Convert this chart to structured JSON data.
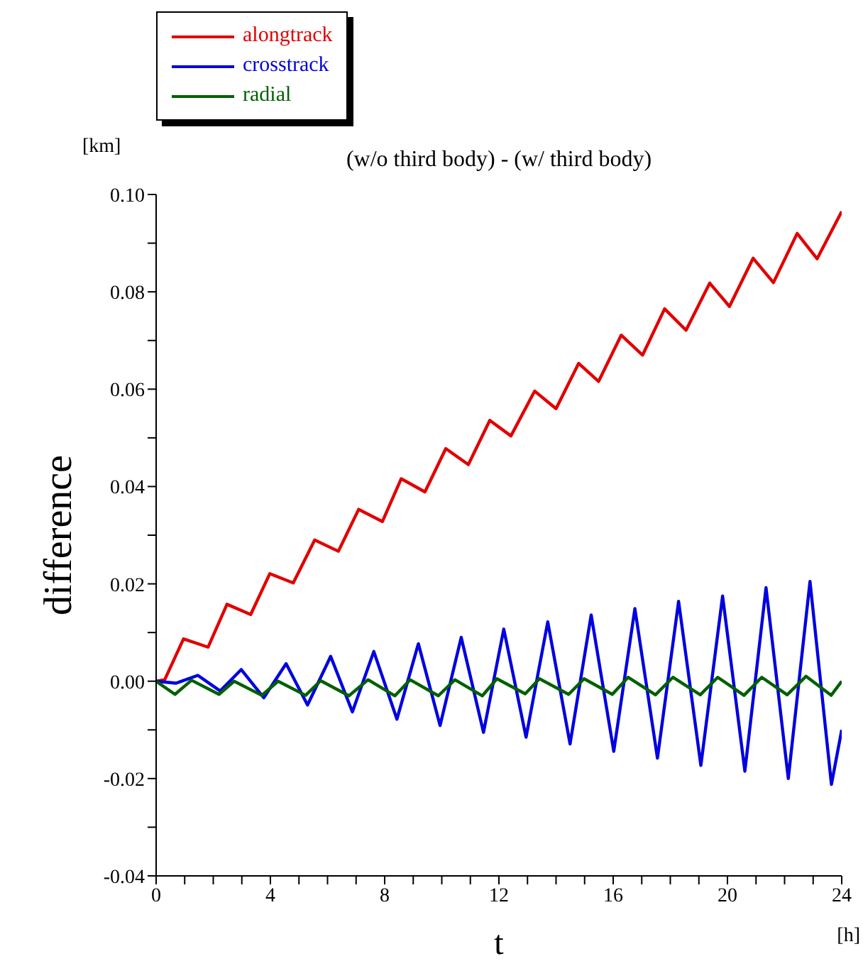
{
  "chart_data": {
    "type": "line",
    "title": "(w/o third body) - (w/ third body)",
    "xlabel": "t",
    "ylabel": "difference",
    "annotations": [
      "[km]",
      "[h]"
    ],
    "legend": "top left",
    "xlim": [
      0,
      24
    ],
    "xticks": [
      0,
      {
        "value": 1,
        "label": null
      },
      {
        "value": 2,
        "label": null
      },
      {
        "value": 3,
        "label": null
      },
      4,
      {
        "value": 5,
        "label": null
      },
      {
        "value": 6,
        "label": null
      },
      {
        "value": 7,
        "label": null
      },
      8,
      {
        "value": 9,
        "label": null
      },
      {
        "value": 10,
        "label": null
      },
      {
        "value": 11,
        "label": null
      },
      12,
      {
        "value": 13,
        "label": null
      },
      {
        "value": 14,
        "label": null
      },
      {
        "value": 15,
        "label": null
      },
      16,
      {
        "value": 17,
        "label": null
      },
      {
        "value": 18,
        "label": null
      },
      {
        "value": 19,
        "label": null
      },
      20,
      {
        "value": 21,
        "label": null
      },
      {
        "value": 22,
        "label": null
      },
      {
        "value": 23,
        "label": null
      },
      24
    ],
    "ylim": [
      -0.04,
      0.1
    ],
    "yticks": [
      {
        "value": -0.04,
        "label": "-0.04"
      },
      {
        "value": -0.03,
        "label": null
      },
      {
        "value": -0.02,
        "label": "-0.02"
      },
      {
        "value": -0.01,
        "label": null
      },
      {
        "value": 0,
        "label": "0.00"
      },
      {
        "value": 0.01,
        "label": null
      },
      {
        "value": 0.02,
        "label": "0.02"
      },
      {
        "value": 0.03,
        "label": null
      },
      {
        "value": 0.04,
        "label": "0.04"
      },
      {
        "value": 0.05,
        "label": null
      },
      {
        "value": 0.06,
        "label": "0.06"
      },
      {
        "value": 0.07,
        "label": null
      },
      {
        "value": 0.08,
        "label": "0.08"
      },
      {
        "value": 0.09,
        "label": null
      },
      {
        "value": 0.1,
        "label": "0.10"
      }
    ],
    "series": [
      {
        "name": "alongtrack",
        "color": "#e00000",
        "x": [
          0,
          0.3,
          0.96,
          1.82,
          2.48,
          3.31,
          3.98,
          4.8,
          5.55,
          6.38,
          7.09,
          7.92,
          8.58,
          9.41,
          10.14,
          10.93,
          11.68,
          12.42,
          13.25,
          14.0,
          14.79,
          15.49,
          16.28,
          17.03,
          17.8,
          18.55,
          19.38,
          20.07,
          20.9,
          21.61,
          22.44,
          23.14,
          24
        ],
        "values": [
          0,
          0.0003,
          0.0087,
          0.007,
          0.0158,
          0.0137,
          0.0221,
          0.0202,
          0.029,
          0.0267,
          0.0353,
          0.0328,
          0.0416,
          0.0389,
          0.0478,
          0.0445,
          0.0536,
          0.0504,
          0.0596,
          0.056,
          0.0653,
          0.0616,
          0.0711,
          0.067,
          0.0765,
          0.0721,
          0.0818,
          0.077,
          0.0869,
          0.0819,
          0.092,
          0.0868,
          0.0965
        ]
      },
      {
        "name": "crosstrack",
        "color": "#0000e0",
        "x": [
          0,
          0.7,
          1.46,
          2.24,
          2.98,
          3.77,
          4.55,
          5.3,
          6.11,
          6.87,
          7.62,
          8.43,
          9.18,
          9.94,
          10.68,
          11.46,
          12.17,
          12.95,
          13.71,
          14.49,
          15.23,
          16.02,
          16.76,
          17.55,
          18.29,
          19.07,
          19.83,
          20.61,
          21.35,
          22.13,
          22.89,
          23.64,
          24
        ],
        "values": [
          0,
          -0.0004,
          0.0012,
          -0.002,
          0.0024,
          -0.0034,
          0.0036,
          -0.0049,
          0.0051,
          -0.0063,
          0.0061,
          -0.0078,
          0.0077,
          -0.0091,
          0.009,
          -0.0105,
          0.0107,
          -0.0115,
          0.0122,
          -0.0129,
          0.0136,
          -0.0144,
          0.0149,
          -0.0158,
          0.0164,
          -0.0173,
          0.0175,
          -0.0185,
          0.0192,
          -0.02,
          0.0205,
          -0.0212,
          -0.01
        ]
      },
      {
        "name": "radial",
        "color": "#006000",
        "x": [
          0,
          0.66,
          1.24,
          2.2,
          2.73,
          3.7,
          4.27,
          5.23,
          5.76,
          6.75,
          7.42,
          8.36,
          8.89,
          9.88,
          10.46,
          11.42,
          11.93,
          12.92,
          13.42,
          14.44,
          14.98,
          15.97,
          16.52,
          17.48,
          18.09,
          19.05,
          19.66,
          20.58,
          21.2,
          22.09,
          22.75,
          23.63,
          24
        ],
        "values": [
          0,
          -0.0027,
          0.0002,
          -0.0027,
          0,
          -0.0029,
          0,
          -0.0029,
          0.0001,
          -0.003,
          0.0003,
          -0.003,
          0.0003,
          -0.003,
          0.0003,
          -0.003,
          0.0005,
          -0.0026,
          0.0005,
          -0.0027,
          0.0005,
          -0.0027,
          0.0008,
          -0.0028,
          0.0008,
          -0.0028,
          0.0008,
          -0.0029,
          0.0008,
          -0.0028,
          0.001,
          -0.0029,
          0
        ]
      }
    ]
  }
}
